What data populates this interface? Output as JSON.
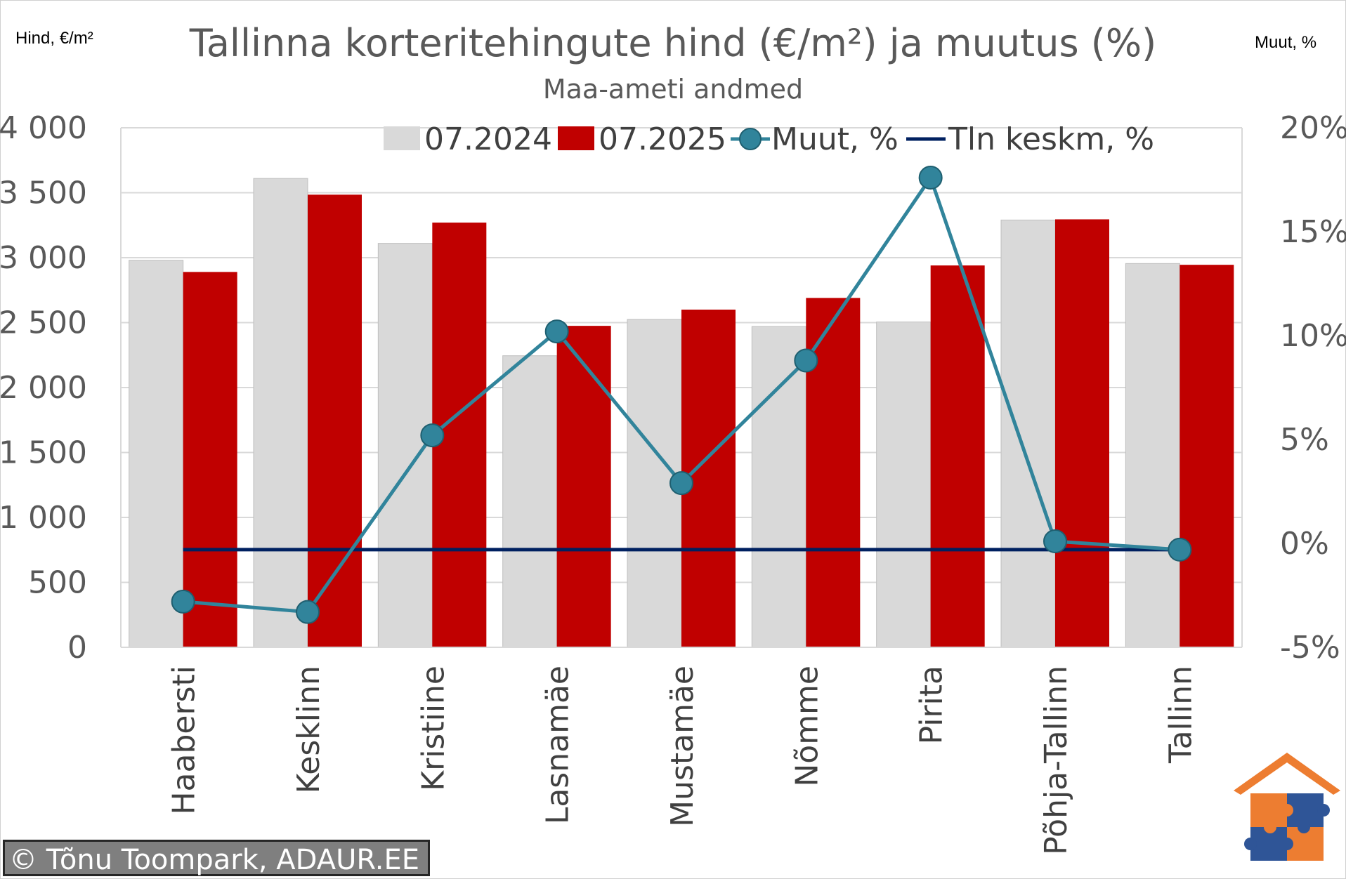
{
  "header": {
    "title": "Tallinna korteritehingute hind (€/m²) ja muutus (%)",
    "subtitle": "Maa-ameti andmed",
    "left_unit": "Hind, €/m²",
    "right_unit": "Muut, %"
  },
  "footer": {
    "copyright": "© Tõnu Toompark, ADAUR.EE"
  },
  "colors": {
    "bar_2024": "#d9d9d9",
    "bar_2025": "#c00000",
    "change_line": "#31849b",
    "average_line": "#002060",
    "grid": "#d9d9d9"
  },
  "chart_data": {
    "type": "bar",
    "categories": [
      "Haabersti",
      "Kesklinn",
      "Kristiine",
      "Lasnamäe",
      "Mustamäe",
      "Nõmme",
      "Pirita",
      "Põhja-Tallinn",
      "Tallinn"
    ],
    "series": [
      {
        "name": "07.2024",
        "type": "bar",
        "axis": "left",
        "values": [
          2980,
          3610,
          3110,
          2245,
          2525,
          2470,
          2505,
          3290,
          2955
        ]
      },
      {
        "name": "07.2025",
        "type": "bar",
        "axis": "left",
        "values": [
          2890,
          3485,
          3270,
          2475,
          2600,
          2690,
          2940,
          3295,
          2945
        ]
      },
      {
        "name": "Muut, %",
        "type": "line-markers",
        "axis": "right",
        "values": [
          -2.8,
          -3.3,
          5.2,
          10.2,
          2.9,
          8.8,
          17.6,
          0.1,
          -0.3
        ]
      },
      {
        "name": "Tln keskm, %",
        "type": "line",
        "axis": "right",
        "values": [
          -0.3,
          -0.3,
          -0.3,
          -0.3,
          -0.3,
          -0.3,
          -0.3,
          -0.3,
          -0.3
        ]
      }
    ],
    "left_axis": {
      "ylim": [
        0,
        4000
      ],
      "ticks": [
        0,
        500,
        1000,
        1500,
        2000,
        2500,
        3000,
        3500,
        4000
      ],
      "tick_labels": [
        "0",
        "500",
        "1 000",
        "1 500",
        "2 000",
        "2 500",
        "3 000",
        "3 500",
        "4 000"
      ]
    },
    "right_axis": {
      "ylim": [
        -5,
        20
      ],
      "ticks": [
        -5,
        0,
        5,
        10,
        15,
        20
      ],
      "tick_labels": [
        "-5%",
        "0%",
        "5%",
        "10%",
        "15%",
        "20%"
      ]
    },
    "grid": true,
    "legend_position": "top"
  }
}
